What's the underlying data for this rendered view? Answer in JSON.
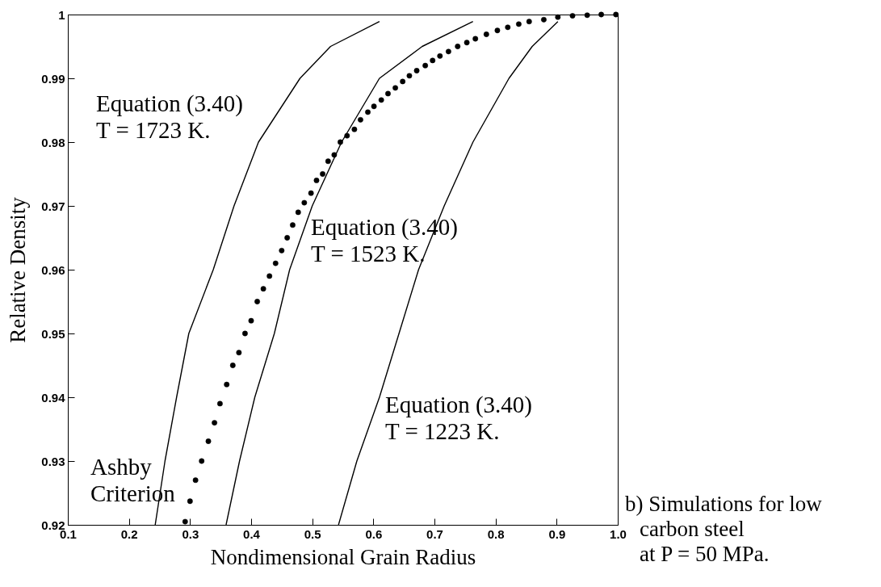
{
  "chart_data": {
    "type": "line",
    "xlabel": "Nondimensional Grain Radius",
    "ylabel": "Relative Density",
    "xlim": [
      0.1,
      1.0
    ],
    "ylim": [
      0.92,
      1
    ],
    "xticks": [
      0.1,
      0.2,
      0.3,
      0.4,
      0.5,
      0.6,
      0.7,
      0.8,
      0.9,
      {
        "value": 1,
        "label": "1.0"
      }
    ],
    "yticks": [
      0.92,
      0.93,
      0.94,
      0.95,
      0.96,
      0.97,
      0.98,
      0.99,
      1
    ],
    "line_style": "solid",
    "series": [
      {
        "type": "line",
        "color": "#000000",
        "x": [
          0.243,
          0.259,
          0.278,
          0.298,
          0.338,
          0.372,
          0.412,
          0.48,
          0.53,
          0.61
        ],
        "values": [
          0.92,
          0.93,
          0.94,
          0.95,
          0.96,
          0.97,
          0.98,
          0.99,
          0.995,
          0.9989
        ]
      },
      {
        "type": "line",
        "color": "#000000",
        "x": [
          0.359,
          0.381,
          0.406,
          0.438,
          0.463,
          0.5,
          0.548,
          0.61,
          0.68,
          0.763
        ],
        "values": [
          0.92,
          0.93,
          0.94,
          0.95,
          0.96,
          0.97,
          0.98,
          0.99,
          0.995,
          0.9989
        ]
      },
      {
        "type": "line",
        "color": "#000000",
        "x": [
          0.543,
          0.573,
          0.61,
          0.642,
          0.674,
          0.716,
          0.763,
          0.822,
          0.86,
          0.902
        ],
        "values": [
          0.92,
          0.93,
          0.94,
          0.95,
          0.96,
          0.97,
          0.98,
          0.99,
          0.995,
          0.9989
        ]
      },
      {
        "type": "scatter",
        "marker": "circle",
        "color": "#000000",
        "x": [
          0.292,
          0.3,
          0.309,
          0.319,
          0.33,
          0.34,
          0.349,
          0.36,
          0.37,
          0.38,
          0.39,
          0.4,
          0.41,
          0.42,
          0.43,
          0.44,
          0.45,
          0.459,
          0.468,
          0.477,
          0.487,
          0.498,
          0.507,
          0.517,
          0.526,
          0.536,
          0.546,
          0.557,
          0.569,
          0.579,
          0.591,
          0.601,
          0.613,
          0.624,
          0.636,
          0.648,
          0.659,
          0.671,
          0.685,
          0.697,
          0.709,
          0.723,
          0.738,
          0.753,
          0.767,
          0.785,
          0.803,
          0.82,
          0.838,
          0.855,
          0.879,
          0.902,
          0.926,
          0.95,
          0.973,
          0.997
        ],
        "values": [
          0.9205,
          0.9237,
          0.927,
          0.93,
          0.9331,
          0.936,
          0.939,
          0.942,
          0.945,
          0.947,
          0.95,
          0.952,
          0.955,
          0.957,
          0.959,
          0.961,
          0.963,
          0.965,
          0.967,
          0.969,
          0.9705,
          0.972,
          0.974,
          0.975,
          0.977,
          0.978,
          0.98,
          0.981,
          0.982,
          0.9835,
          0.9847,
          0.9856,
          0.9866,
          0.9876,
          0.9885,
          0.9895,
          0.9904,
          0.9912,
          0.992,
          0.9928,
          0.9935,
          0.9942,
          0.995,
          0.9956,
          0.9962,
          0.9969,
          0.9975,
          0.998,
          0.9985,
          0.9989,
          0.9992,
          0.9996,
          0.9998,
          0.9999,
          1,
          1
        ]
      }
    ],
    "annotations": [
      "Equation (3.40)\nT = 1723 K.",
      "Equation (3.40)\nT = 1523 K.",
      "Equation (3.40)\nT = 1223 K.",
      "Ashby\nCriterion",
      "b) Simulations for low\ncarbon steel\nat P = 50 MPa."
    ]
  }
}
